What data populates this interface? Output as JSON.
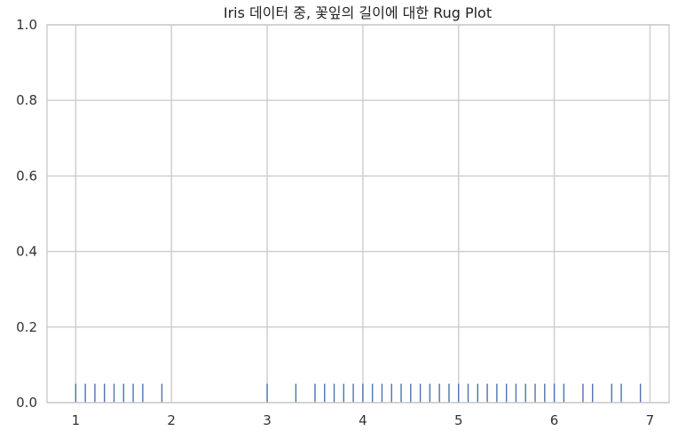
{
  "chart_data": {
    "type": "rug",
    "title": "Iris 데이터 중, 꽃잎의 길이에 대한 Rug Plot",
    "xlabel": "",
    "ylabel": "",
    "xlim": [
      0.7,
      7.2
    ],
    "ylim": [
      0,
      1
    ],
    "grid": true,
    "legend": "none",
    "x_ticks": [
      1,
      2,
      3,
      4,
      5,
      6,
      7
    ],
    "x_tick_labels": [
      "1",
      "2",
      "3",
      "4",
      "5",
      "6",
      "7"
    ],
    "y_ticks": [
      0,
      0.2,
      0.4,
      0.6,
      0.8,
      1
    ],
    "y_tick_labels": [
      "0.0",
      "0.2",
      "0.4",
      "0.6",
      "0.8",
      "1.0"
    ],
    "rug_height": 0.05,
    "values": [
      1.0,
      1.1,
      1.2,
      1.3,
      1.4,
      1.5,
      1.6,
      1.7,
      1.9,
      3.0,
      3.3,
      3.5,
      3.6,
      3.7,
      3.8,
      3.9,
      4.0,
      4.1,
      4.2,
      4.3,
      4.4,
      4.5,
      4.6,
      4.7,
      4.8,
      4.9,
      5.0,
      5.1,
      5.2,
      5.3,
      5.4,
      5.5,
      5.6,
      5.7,
      5.8,
      5.9,
      6.0,
      6.1,
      6.3,
      6.4,
      6.6,
      6.7,
      6.9
    ],
    "colors": {
      "rug": "#4c72b0",
      "grid": "#cccccc",
      "axes": "#cccccc"
    }
  }
}
